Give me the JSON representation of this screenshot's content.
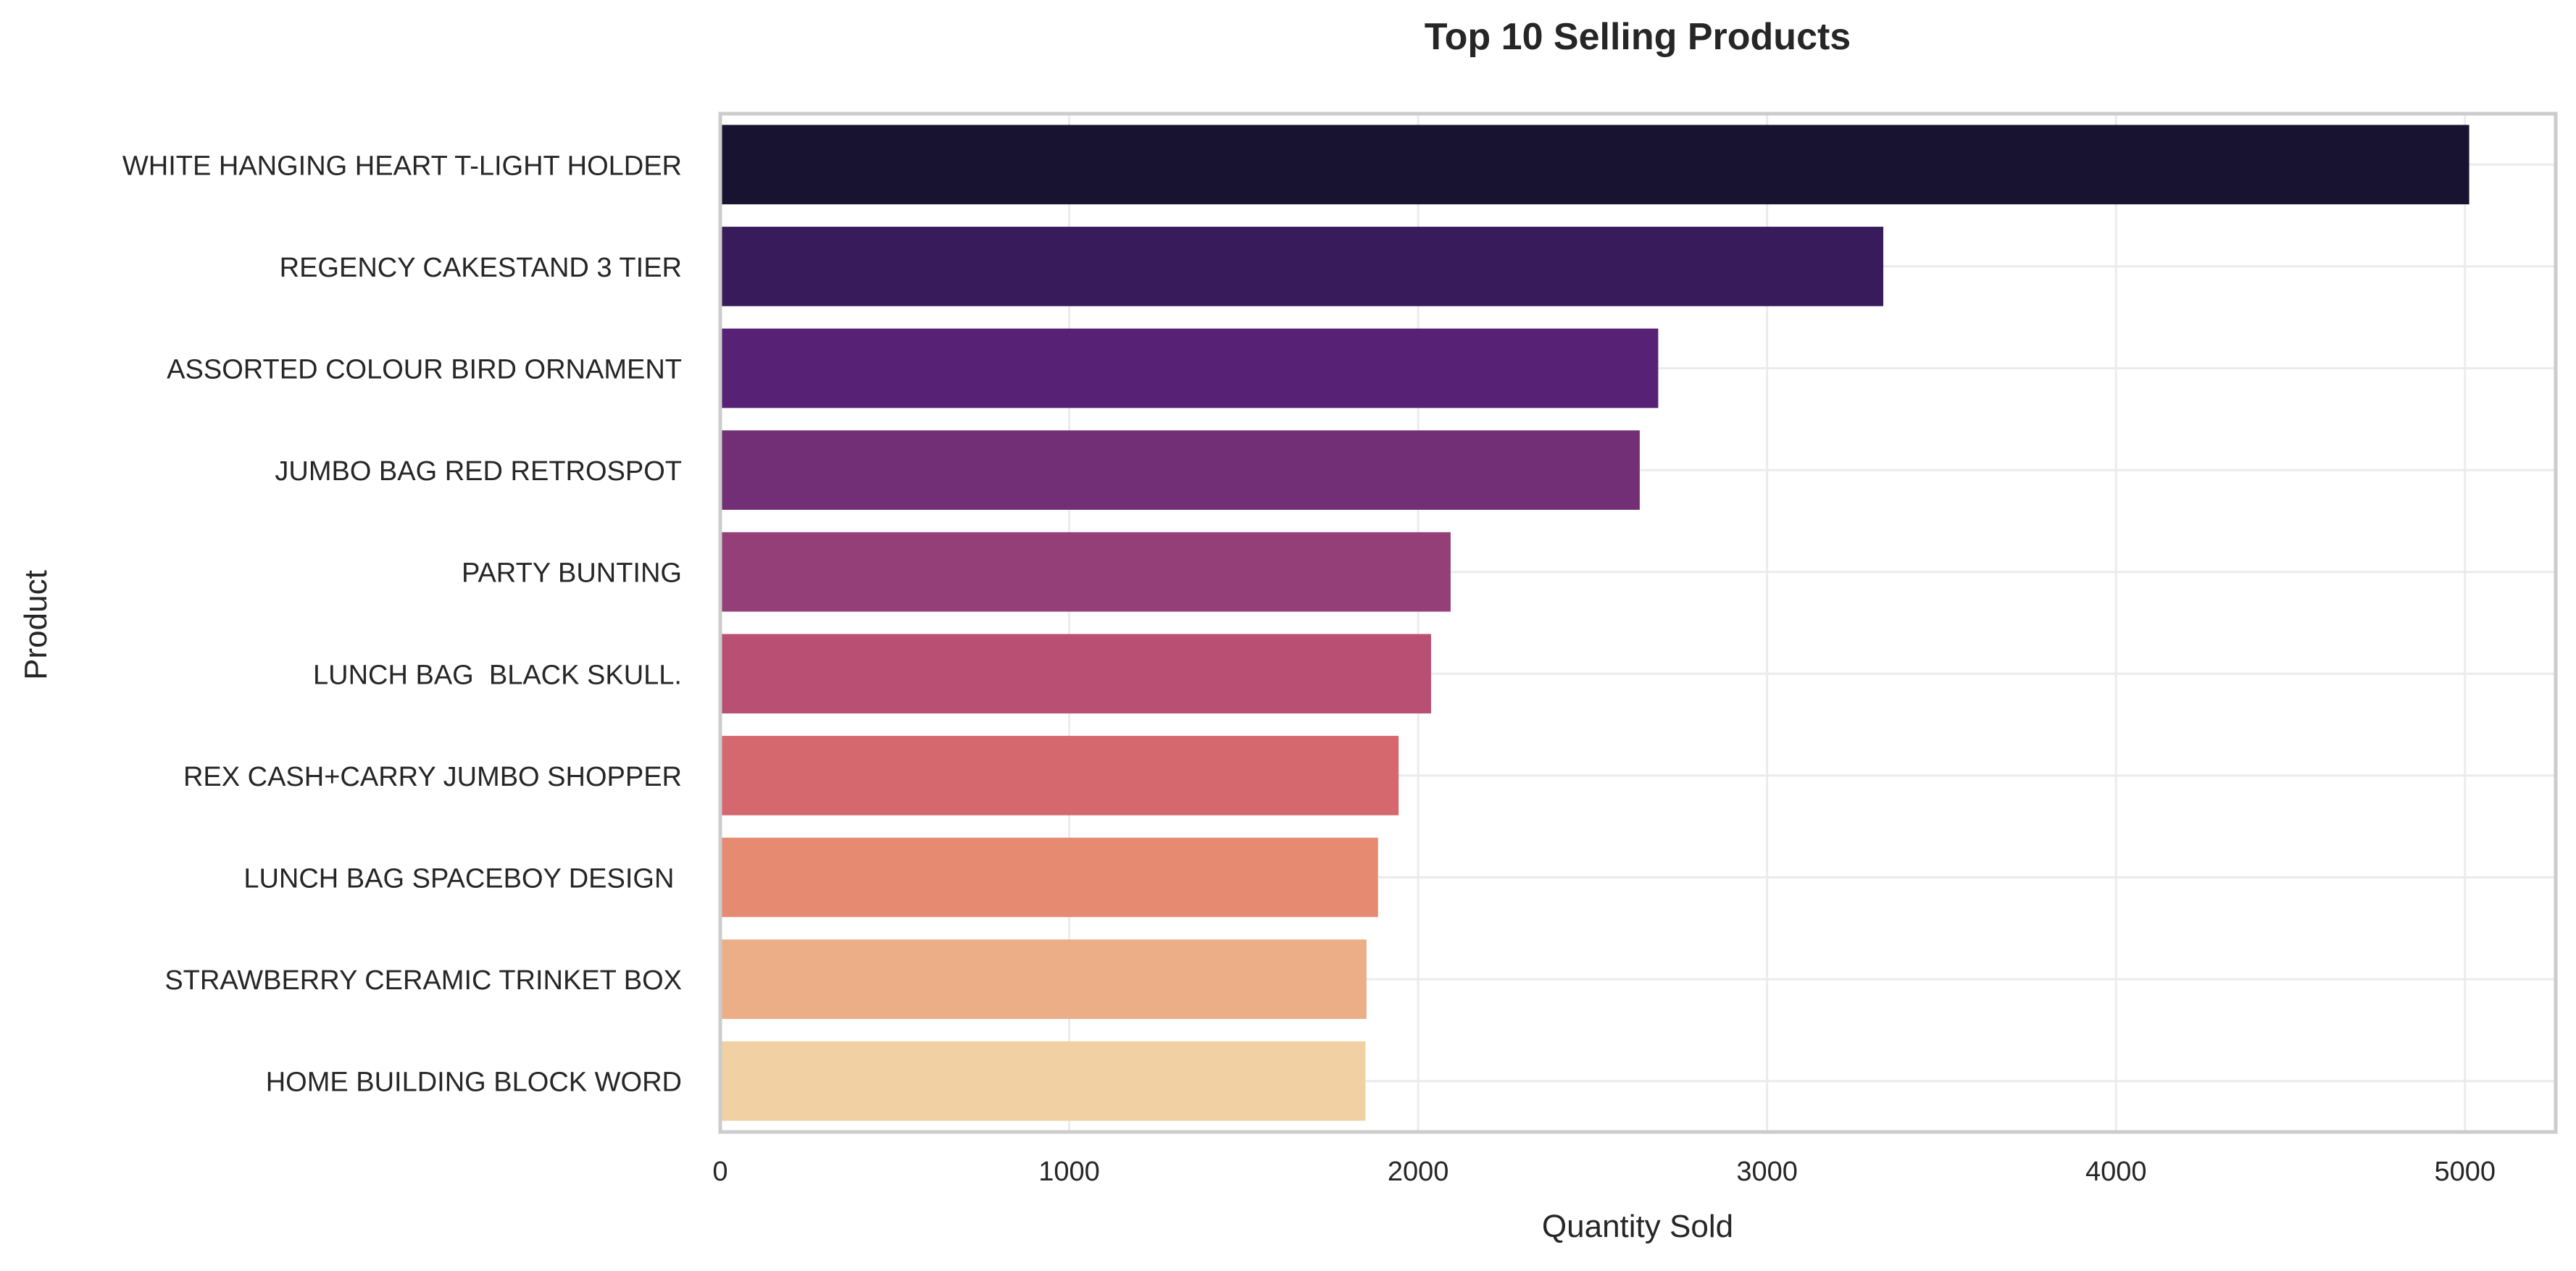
{
  "chart_data": {
    "type": "bar",
    "orientation": "horizontal",
    "title": "Top 10 Selling Products",
    "xlabel": "Quantity Sold",
    "ylabel": "Product",
    "categories": [
      "WHITE HANGING HEART T-LIGHT HOLDER",
      "REGENCY CAKESTAND 3 TIER",
      "ASSORTED COLOUR BIRD ORNAMENT",
      "JUMBO BAG RED RETROSPOT",
      "PARTY BUNTING",
      "LUNCH BAG  BLACK SKULL.",
      "REX CASH+CARRY JUMBO SHOPPER",
      "LUNCH BAG SPACEBOY DESIGN ",
      "STRAWBERRY CERAMIC TRINKET BOX",
      "HOME BUILDING BLOCK WORD"
    ],
    "values": [
      5012,
      3333,
      2688,
      2635,
      2093,
      2037,
      1944,
      1885,
      1852,
      1849
    ],
    "colors": [
      "#171330",
      "#381b5b",
      "#572175",
      "#722f76",
      "#953f78",
      "#b94f73",
      "#d5676f",
      "#e68b71",
      "#ecae86",
      "#f1d1a3"
    ],
    "xlim": [
      0,
      5260
    ],
    "xticks": [
      0,
      1000,
      2000,
      3000,
      4000,
      5000
    ],
    "xtick_labels": [
      "0",
      "1000",
      "2000",
      "3000",
      "4000",
      "5000"
    ],
    "grid": true,
    "legend": "none",
    "style": {
      "grid_color": "#ebebeb",
      "frame_color": "#cccccc",
      "text_color": "#262626"
    }
  }
}
